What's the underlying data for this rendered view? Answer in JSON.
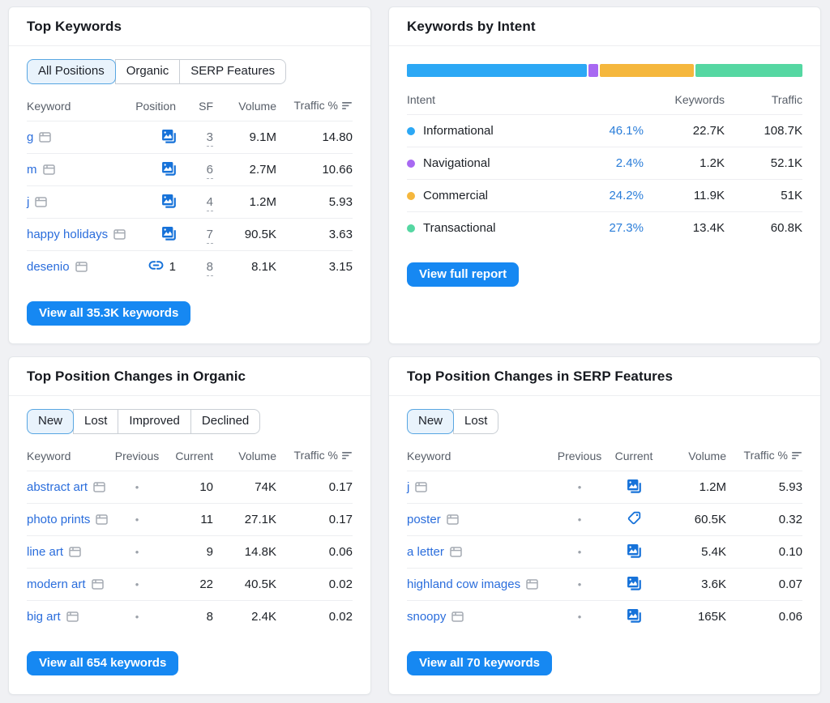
{
  "top_keywords": {
    "title": "Top Keywords",
    "tabs": [
      {
        "label": "All Positions",
        "active": true
      },
      {
        "label": "Organic",
        "active": false
      },
      {
        "label": "SERP Features",
        "active": false
      }
    ],
    "columns": {
      "keyword": "Keyword",
      "position": "Position",
      "sf": "SF",
      "volume": "Volume",
      "traffic": "Traffic %"
    },
    "rows": [
      {
        "keyword": "g",
        "icon": "images",
        "position": "",
        "sf": "3",
        "volume": "9.1M",
        "traffic": "14.80"
      },
      {
        "keyword": "m",
        "icon": "images",
        "position": "",
        "sf": "6",
        "volume": "2.7M",
        "traffic": "10.66"
      },
      {
        "keyword": "j",
        "icon": "images",
        "position": "",
        "sf": "4",
        "volume": "1.2M",
        "traffic": "5.93"
      },
      {
        "keyword": "happy holidays",
        "icon": "images",
        "position": "",
        "sf": "7",
        "volume": "90.5K",
        "traffic": "3.63"
      },
      {
        "keyword": "desenio",
        "icon": "link",
        "position": "1",
        "sf": "8",
        "volume": "8.1K",
        "traffic": "3.15"
      }
    ],
    "button": "View all 35.3K keywords"
  },
  "intent": {
    "title": "Keywords by Intent",
    "columns": {
      "intent": "Intent",
      "keywords": "Keywords",
      "traffic": "Traffic"
    },
    "chart_data": {
      "type": "bar",
      "categories": [
        "Informational",
        "Navigational",
        "Commercial",
        "Transactional"
      ],
      "values": [
        46.1,
        2.4,
        24.2,
        27.3
      ],
      "title": "Keywords by Intent",
      "ylim": [
        0,
        100
      ]
    },
    "rows": [
      {
        "label": "Informational",
        "color": "#2CA8F5",
        "share": 46.1,
        "percent": "46.1%",
        "keywords": "22.7K",
        "traffic": "108.7K"
      },
      {
        "label": "Navigational",
        "color": "#A869F2",
        "share": 2.4,
        "percent": "2.4%",
        "keywords": "1.2K",
        "traffic": "52.1K"
      },
      {
        "label": "Commercial",
        "color": "#F5B73D",
        "share": 24.2,
        "percent": "24.2%",
        "keywords": "11.9K",
        "traffic": "51K"
      },
      {
        "label": "Transactional",
        "color": "#55D7A2",
        "share": 27.3,
        "percent": "27.3%",
        "keywords": "13.4K",
        "traffic": "60.8K"
      }
    ],
    "button": "View full report"
  },
  "organic_changes": {
    "title": "Top Position Changes in Organic",
    "tabs": [
      {
        "label": "New",
        "active": true
      },
      {
        "label": "Lost",
        "active": false
      },
      {
        "label": "Improved",
        "active": false
      },
      {
        "label": "Declined",
        "active": false
      }
    ],
    "columns": {
      "keyword": "Keyword",
      "previous": "Previous",
      "current": "Current",
      "volume": "Volume",
      "traffic": "Traffic %"
    },
    "rows": [
      {
        "keyword": "abstract art",
        "previous": "•",
        "current": "10",
        "volume": "74K",
        "traffic": "0.17"
      },
      {
        "keyword": "photo prints",
        "previous": "•",
        "current": "11",
        "volume": "27.1K",
        "traffic": "0.17"
      },
      {
        "keyword": "line art",
        "previous": "•",
        "current": "9",
        "volume": "14.8K",
        "traffic": "0.06"
      },
      {
        "keyword": "modern art",
        "previous": "•",
        "current": "22",
        "volume": "40.5K",
        "traffic": "0.02"
      },
      {
        "keyword": "big art",
        "previous": "•",
        "current": "8",
        "volume": "2.4K",
        "traffic": "0.02"
      }
    ],
    "button": "View all 654 keywords"
  },
  "serp_changes": {
    "title": "Top Position Changes in SERP Features",
    "tabs": [
      {
        "label": "New",
        "active": true
      },
      {
        "label": "Lost",
        "active": false
      }
    ],
    "columns": {
      "keyword": "Keyword",
      "previous": "Previous",
      "current": "Current",
      "volume": "Volume",
      "traffic": "Traffic %"
    },
    "rows": [
      {
        "keyword": "j",
        "previous": "•",
        "icon": "images",
        "volume": "1.2M",
        "traffic": "5.93"
      },
      {
        "keyword": "poster",
        "previous": "•",
        "icon": "tag",
        "volume": "60.5K",
        "traffic": "0.32"
      },
      {
        "keyword": "a letter",
        "previous": "•",
        "icon": "images",
        "volume": "5.4K",
        "traffic": "0.10"
      },
      {
        "keyword": "highland cow images",
        "previous": "•",
        "icon": "images",
        "volume": "3.6K",
        "traffic": "0.07"
      },
      {
        "keyword": "snoopy",
        "previous": "•",
        "icon": "images",
        "volume": "165K",
        "traffic": "0.06"
      }
    ],
    "button": "View all 70 keywords"
  }
}
